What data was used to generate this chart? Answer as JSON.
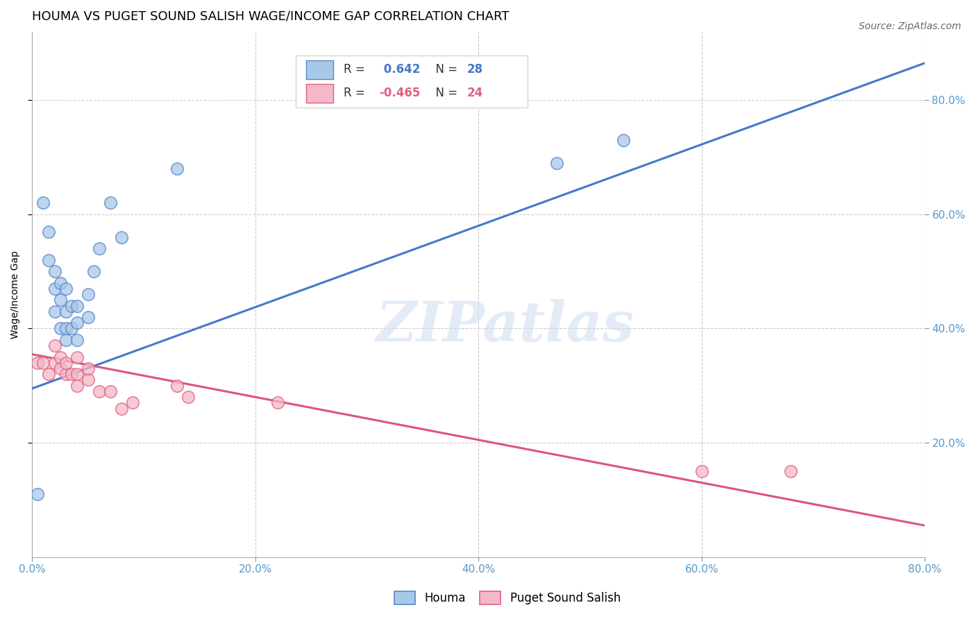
{
  "title": "HOUMA VS PUGET SOUND SALISH WAGE/INCOME GAP CORRELATION CHART",
  "source": "Source: ZipAtlas.com",
  "ylabel": "Wage/Income Gap",
  "xlim": [
    0.0,
    0.8
  ],
  "ylim": [
    0.0,
    0.92
  ],
  "xtick_positions": [
    0.0,
    0.2,
    0.4,
    0.6,
    0.8
  ],
  "ytick_positions": [
    0.2,
    0.4,
    0.6,
    0.8
  ],
  "houma_R": 0.642,
  "houma_N": 28,
  "puget_R": -0.465,
  "puget_N": 24,
  "houma_scatter_color": "#a8c8e8",
  "houma_scatter_edge": "#5588cc",
  "puget_scatter_color": "#f4b8c8",
  "puget_scatter_edge": "#e06080",
  "houma_line_color": "#4477cc",
  "puget_line_color": "#dd5577",
  "tick_color": "#5599cc",
  "houma_points_x": [
    0.005,
    0.01,
    0.015,
    0.015,
    0.02,
    0.02,
    0.02,
    0.025,
    0.025,
    0.025,
    0.03,
    0.03,
    0.03,
    0.03,
    0.035,
    0.035,
    0.04,
    0.04,
    0.04,
    0.05,
    0.05,
    0.055,
    0.06,
    0.07,
    0.08,
    0.13,
    0.47,
    0.53
  ],
  "houma_points_y": [
    0.11,
    0.62,
    0.52,
    0.57,
    0.43,
    0.47,
    0.5,
    0.4,
    0.45,
    0.48,
    0.38,
    0.4,
    0.43,
    0.47,
    0.4,
    0.44,
    0.38,
    0.41,
    0.44,
    0.42,
    0.46,
    0.5,
    0.54,
    0.62,
    0.56,
    0.68,
    0.69,
    0.73
  ],
  "puget_points_x": [
    0.005,
    0.01,
    0.015,
    0.02,
    0.02,
    0.025,
    0.025,
    0.03,
    0.03,
    0.035,
    0.04,
    0.04,
    0.04,
    0.05,
    0.05,
    0.06,
    0.07,
    0.08,
    0.09,
    0.13,
    0.14,
    0.22,
    0.6,
    0.68
  ],
  "puget_points_y": [
    0.34,
    0.34,
    0.32,
    0.34,
    0.37,
    0.33,
    0.35,
    0.32,
    0.34,
    0.32,
    0.3,
    0.32,
    0.35,
    0.31,
    0.33,
    0.29,
    0.29,
    0.26,
    0.27,
    0.3,
    0.28,
    0.27,
    0.15,
    0.15
  ],
  "houma_line_x0": 0.0,
  "houma_line_y0": 0.295,
  "houma_line_x1": 0.8,
  "houma_line_y1": 0.865,
  "puget_line_x0": 0.0,
  "puget_line_y0": 0.355,
  "puget_line_x1": 0.8,
  "puget_line_y1": 0.055,
  "watermark_text": "ZIPatlas",
  "background_color": "#ffffff",
  "grid_color": "#cccccc",
  "title_fontsize": 13,
  "tick_fontsize": 11,
  "ylabel_fontsize": 10,
  "source_fontsize": 10,
  "legend_fontsize": 12,
  "scatter_size": 160,
  "scatter_alpha": 0.75,
  "scatter_linewidth": 1.2,
  "line_width": 2.2
}
